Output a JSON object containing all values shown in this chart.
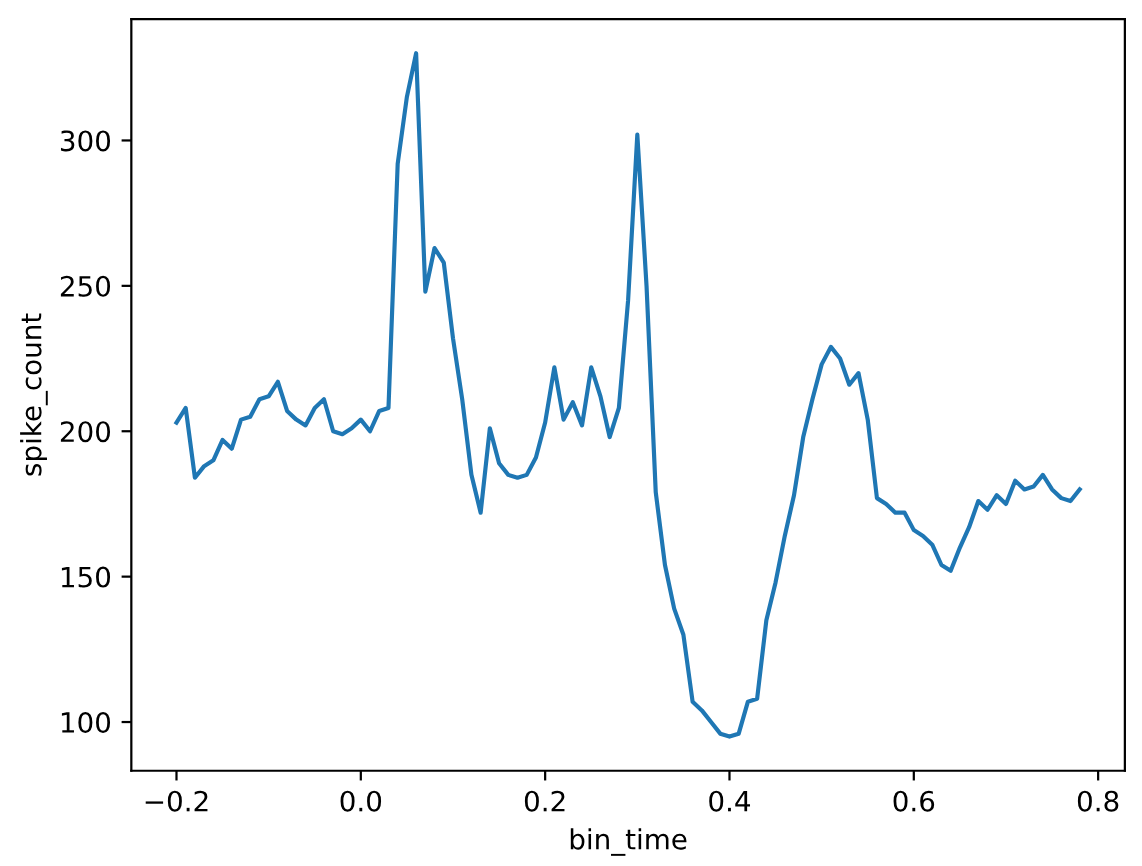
{
  "chart_data": {
    "type": "line",
    "xlabel": "bin_time",
    "ylabel": "spike_count",
    "x": [
      -0.2,
      -0.19,
      -0.18,
      -0.17,
      -0.16,
      -0.15,
      -0.14,
      -0.13,
      -0.12,
      -0.11,
      -0.1,
      -0.09,
      -0.08,
      -0.07,
      -0.06,
      -0.05,
      -0.04,
      -0.03,
      -0.02,
      -0.01,
      0.0,
      0.01,
      0.02,
      0.03,
      0.04,
      0.05,
      0.06,
      0.07,
      0.08,
      0.09,
      0.1,
      0.11,
      0.12,
      0.13,
      0.14,
      0.15,
      0.16,
      0.17,
      0.18,
      0.19,
      0.2,
      0.21,
      0.22,
      0.23,
      0.24,
      0.25,
      0.26,
      0.27,
      0.28,
      0.29,
      0.3,
      0.31,
      0.32,
      0.33,
      0.34,
      0.35,
      0.36,
      0.37,
      0.38,
      0.39,
      0.4,
      0.41,
      0.42,
      0.43,
      0.44,
      0.45,
      0.46,
      0.47,
      0.48,
      0.49,
      0.5,
      0.51,
      0.52,
      0.53,
      0.54,
      0.55,
      0.56,
      0.57,
      0.58,
      0.59,
      0.6,
      0.61,
      0.62,
      0.63,
      0.64,
      0.65,
      0.66,
      0.67,
      0.68,
      0.69,
      0.7,
      0.71,
      0.72,
      0.73,
      0.74,
      0.75,
      0.76,
      0.77,
      0.78
    ],
    "series": [
      {
        "color": "#1f77b4",
        "values": [
          203,
          208,
          184,
          188,
          190,
          197,
          194,
          204,
          205,
          211,
          212,
          217,
          207,
          204,
          202,
          208,
          211,
          200,
          199,
          201,
          204,
          200,
          207,
          208,
          292,
          315,
          330,
          248,
          263,
          258,
          232,
          211,
          185,
          172,
          201,
          189,
          185,
          184,
          185,
          191,
          203,
          222,
          204,
          210,
          202,
          222,
          212,
          198,
          208,
          245,
          302,
          250,
          179,
          154,
          139,
          130,
          107,
          104,
          100,
          96,
          95,
          96,
          107,
          108,
          135,
          148,
          164,
          178,
          198,
          211,
          223,
          229,
          225,
          216,
          220,
          204,
          177,
          175,
          172,
          172,
          166,
          164,
          161,
          154,
          152,
          160,
          167,
          176,
          173,
          178,
          175,
          183,
          180,
          181,
          185,
          180,
          177,
          176,
          180
        ]
      }
    ],
    "xlim": [
      -0.249,
      0.829
    ],
    "ylim": [
      83.25,
      341.75
    ],
    "xticks": [
      {
        "value": -0.2,
        "label": "−0.2"
      },
      {
        "value": 0,
        "label": "0.0"
      },
      0.2,
      0.4,
      0.6,
      0.8
    ],
    "yticks": [
      100,
      150,
      200,
      250,
      300
    ],
    "grid": false,
    "legend": false,
    "marker": "none",
    "line_style": "solid"
  }
}
